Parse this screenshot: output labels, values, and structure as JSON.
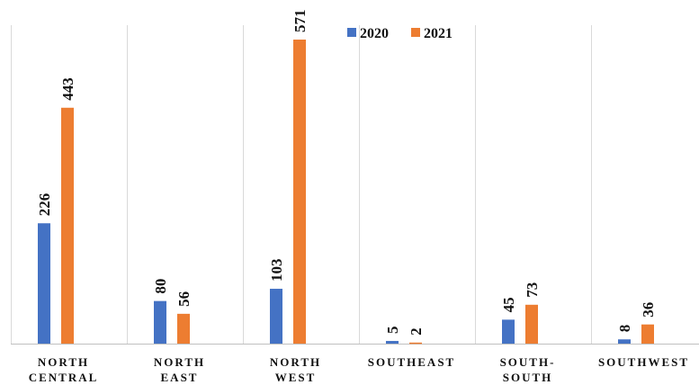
{
  "chart_data": {
    "type": "bar",
    "categories": [
      [
        "NORTH",
        "CENTRAL"
      ],
      [
        "NORTH",
        "EAST"
      ],
      [
        "NORTH",
        "WEST"
      ],
      [
        "SOUTHEAST"
      ],
      [
        "SOUTH-",
        "SOUTH"
      ],
      [
        "SOUTHWEST"
      ]
    ],
    "series": [
      {
        "name": "2020",
        "values": [
          226,
          80,
          103,
          5,
          45,
          8
        ],
        "color": "#4472C4"
      },
      {
        "name": "2021",
        "values": [
          443,
          56,
          571,
          2,
          73,
          36
        ],
        "color": "#ED7D31"
      }
    ],
    "title": "",
    "xlabel": "",
    "ylabel": "",
    "ylim": [
      0,
      600
    ],
    "grid": "vertical separators between categories",
    "legend": "top-center"
  }
}
